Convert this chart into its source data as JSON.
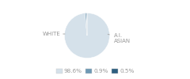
{
  "sizes": [
    98.6,
    0.9,
    0.5
  ],
  "colors": [
    "#d5e1ea",
    "#6e99b4",
    "#2e5f80"
  ],
  "legend_labels": [
    "98.6%",
    "0.9%",
    "0.5%"
  ],
  "legend_colors": [
    "#d5e1ea",
    "#6e99b4",
    "#2e5f80"
  ],
  "background_color": "#ffffff",
  "label_fontsize": 5.0,
  "legend_fontsize": 5.2,
  "white_label": "WHITE",
  "asian_label": "A.I.\nASIAN",
  "label_color": "#999999",
  "line_color": "#aaaaaa"
}
